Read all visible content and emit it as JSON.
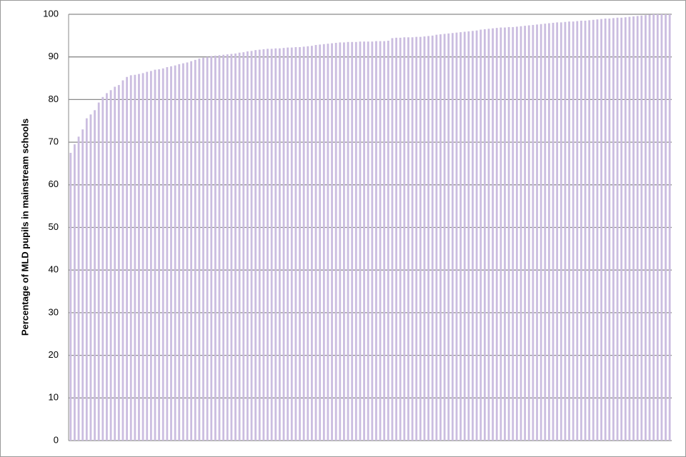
{
  "chart_data": {
    "type": "bar",
    "y_label": "Percentage of MLD pupils  in mainstream schools",
    "categories": [
      null,
      null,
      null,
      null,
      null,
      null,
      null,
      null,
      null,
      null,
      null,
      null,
      null,
      null,
      null,
      null,
      null,
      null,
      null,
      null,
      null,
      null,
      null,
      null,
      null,
      null,
      null,
      null,
      null,
      null,
      null,
      null,
      null,
      null,
      null,
      null,
      null,
      null,
      null,
      null,
      null,
      null,
      null,
      null,
      null,
      null,
      null,
      null,
      null,
      null,
      null,
      null,
      null,
      null,
      null,
      null,
      null,
      null,
      null,
      null,
      null,
      null,
      null,
      null,
      null,
      null,
      null,
      null,
      null,
      null,
      null,
      null,
      null,
      null,
      null,
      null,
      null,
      null,
      null,
      null,
      null,
      null,
      null,
      null,
      null,
      null,
      null,
      null,
      null,
      null,
      null,
      null,
      null,
      null,
      null,
      null,
      null,
      null,
      null,
      null,
      null,
      null,
      null,
      null,
      null,
      null,
      null,
      null,
      null,
      null,
      null,
      null,
      null,
      null,
      null,
      null,
      null,
      null,
      null,
      null,
      null,
      null,
      null,
      null,
      null,
      null,
      null,
      null,
      null,
      null,
      null,
      null,
      null,
      null,
      null,
      null,
      null,
      null,
      null,
      null,
      null,
      null,
      null,
      null,
      null,
      null,
      null,
      null,
      null,
      null
    ],
    "values": [
      67.5,
      69.5,
      71.3,
      73,
      75.6,
      76.5,
      77.5,
      79.3,
      80.6,
      81.5,
      82.2,
      83,
      83.4,
      84.5,
      85.3,
      85.7,
      85.8,
      86,
      86.2,
      86.5,
      86.7,
      87,
      87.1,
      87.3,
      87.6,
      87.8,
      88,
      88.3,
      88.5,
      88.7,
      89,
      89.3,
      89.6,
      89.8,
      90,
      90.2,
      90.3,
      90.4,
      90.5,
      90.6,
      90.7,
      90.8,
      91,
      91.1,
      91.3,
      91.4,
      91.6,
      91.7,
      91.8,
      91.9,
      91.9,
      92,
      92,
      92.1,
      92.2,
      92.2,
      92.3,
      92.3,
      92.4,
      92.5,
      92.6,
      92.8,
      92.9,
      93,
      93.1,
      93.2,
      93.3,
      93.4,
      93.4,
      93.5,
      93.5,
      93.5,
      93.6,
      93.6,
      93.6,
      93.6,
      93.7,
      93.7,
      93.7,
      93.8,
      94.4,
      94.5,
      94.5,
      94.6,
      94.6,
      94.6,
      94.7,
      94.7,
      94.8,
      94.9,
      95,
      95.2,
      95.3,
      95.4,
      95.5,
      95.6,
      95.7,
      95.8,
      95.9,
      96,
      96.1,
      96.2,
      96.4,
      96.5,
      96.6,
      96.7,
      96.8,
      96.9,
      96.9,
      97,
      97,
      97.1,
      97.2,
      97.3,
      97.4,
      97.5,
      97.6,
      97.7,
      97.8,
      97.9,
      98,
      98.1,
      98.1,
      98.2,
      98.3,
      98.3,
      98.4,
      98.5,
      98.5,
      98.6,
      98.7,
      98.8,
      98.9,
      99,
      99,
      99.1,
      99.2,
      99.2,
      99.3,
      99.4,
      99.5,
      99.6,
      99.7,
      99.8,
      99.9,
      100,
      100,
      100,
      100,
      100
    ],
    "color": "#cbbde0",
    "ylim": [
      0,
      100
    ],
    "yticks": [
      0,
      10,
      20,
      30,
      40,
      50,
      60,
      70,
      80,
      90,
      100
    ],
    "grid": true
  }
}
